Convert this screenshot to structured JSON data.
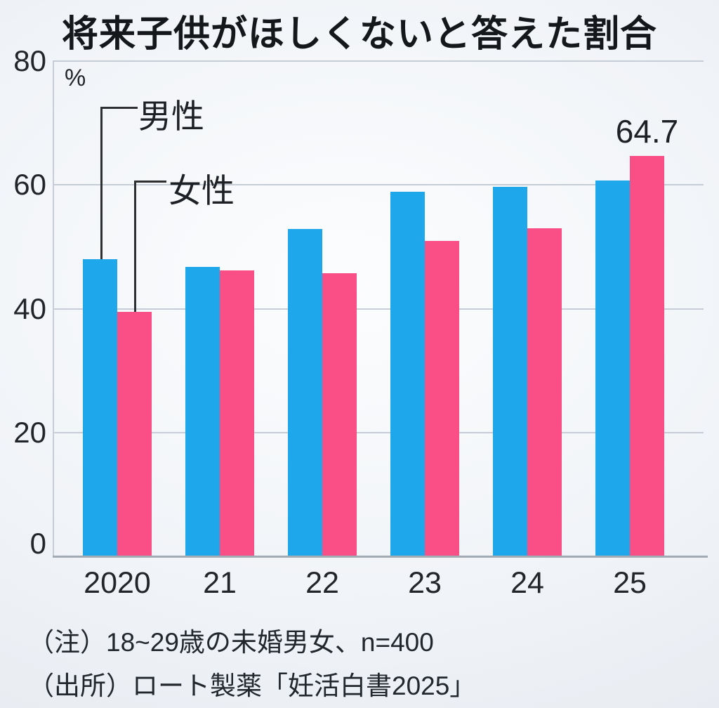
{
  "title": "将来子供がほしくないと答えた割合",
  "y_axis": {
    "unit": "%",
    "tick_labels": [
      "80",
      "60",
      "40",
      "20",
      "0"
    ]
  },
  "x_axis": {
    "tick_labels": [
      "2020",
      "21",
      "22",
      "23",
      "24",
      "25"
    ]
  },
  "legend": {
    "male_label": "男性",
    "female_label": "女性"
  },
  "annotation_value": "64.7",
  "notes": [
    "（注）18~29歳の未婚男女、n=400",
    "（出所）ロート製薬「妊活白書2025」"
  ],
  "colors": {
    "male_bar": "#1ea7eb",
    "female_bar": "#f94f86",
    "gridline": "#c6cdd7",
    "baseline": "#a2aab4",
    "callout_line": "#2d2f31",
    "text": "#1b1f24",
    "background_center": "#fcfdfe",
    "background_edge": "#e2e6ec"
  },
  "chart_data": {
    "type": "bar",
    "title": "将来子供がほしくないと答えた割合",
    "categories": [
      "2020",
      "21",
      "22",
      "23",
      "24",
      "25"
    ],
    "series": [
      {
        "name": "男性",
        "color": "#1ea7eb",
        "values": [
          48.0,
          46.7,
          52.9,
          58.9,
          59.7,
          60.7
        ]
      },
      {
        "name": "女性",
        "color": "#f94f86",
        "values": [
          39.5,
          46.2,
          45.7,
          51.0,
          53.0,
          64.7
        ]
      }
    ],
    "ylabel": "%",
    "ylim": [
      0,
      80
    ],
    "yticks": [
      0,
      20,
      40,
      60,
      80
    ],
    "grid": true,
    "legend_position": "callout-left-pointing-to-2020-bars",
    "annotations": [
      {
        "series": "女性",
        "category": "25",
        "text": "64.7"
      }
    ],
    "notes": [
      "（注）18~29歳の未婚男女、n=400",
      "（出所）ロート製薬「妊活白書2025」"
    ]
  }
}
